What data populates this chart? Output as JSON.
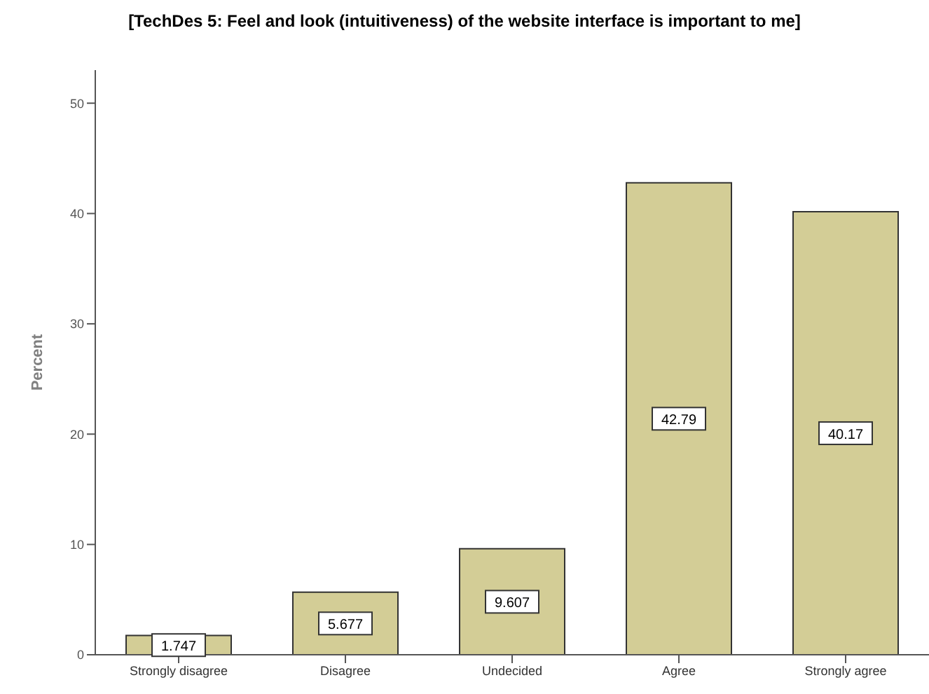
{
  "chart_data": {
    "type": "bar",
    "title": "[TechDes 5: Feel and look (intuitiveness) of the website interface is important to me]",
    "ylabel": "Percent",
    "categories": [
      "Strongly disagree",
      "Disagree",
      "Undecided",
      "Agree",
      "Strongly agree"
    ],
    "values": [
      1.747,
      5.677,
      9.607,
      42.79,
      40.17
    ],
    "color": "#d3cd96",
    "data_labels": true,
    "ylim": [
      0,
      53
    ],
    "yticks": [
      0,
      10,
      20,
      30,
      40,
      50
    ],
    "grid": false,
    "legend": false
  }
}
